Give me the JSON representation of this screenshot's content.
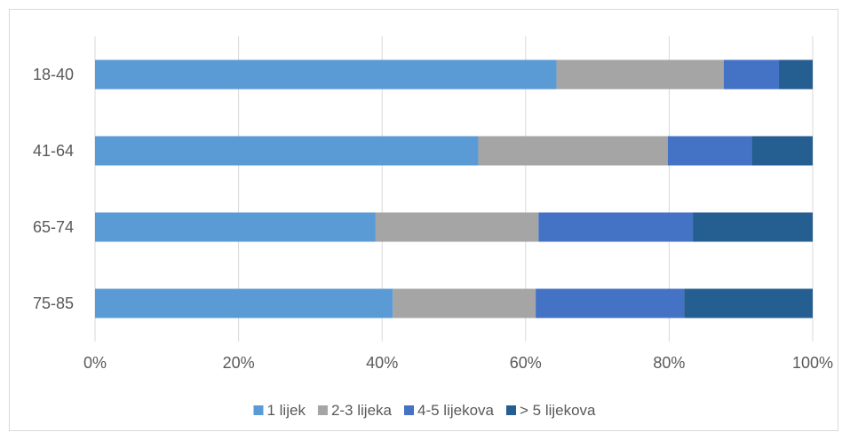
{
  "chart_data": {
    "type": "bar",
    "orientation": "horizontal",
    "stacked": "percent",
    "categories": [
      "18-40",
      "41-64",
      "65-74",
      "75-85"
    ],
    "series": [
      {
        "name": "1 lijek",
        "values": [
          64.3,
          53.4,
          39.1,
          41.5
        ],
        "color": "#5b9bd5"
      },
      {
        "name": "2-3 lijeka",
        "values": [
          23.3,
          26.4,
          22.7,
          19.9
        ],
        "color": "#a5a5a5"
      },
      {
        "name": "4-5 lijekova",
        "values": [
          7.7,
          11.7,
          21.5,
          20.7
        ],
        "color": "#4472c4"
      },
      {
        "name": "> 5 lijekova",
        "values": [
          4.7,
          8.5,
          16.7,
          17.9
        ],
        "color": "#255e91"
      }
    ],
    "x_ticks": [
      "0%",
      "20%",
      "40%",
      "60%",
      "80%",
      "100%"
    ],
    "xlim": [
      0,
      100
    ],
    "grid": "vertical",
    "legend_position": "bottom",
    "title": "",
    "xlabel": "",
    "ylabel": ""
  }
}
